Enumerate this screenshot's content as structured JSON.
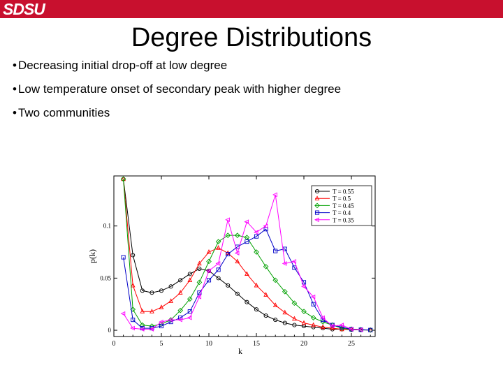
{
  "header": {
    "logo_text": "SDSU",
    "brand_color": "#c8102e"
  },
  "slide": {
    "title": "Degree Distributions",
    "bullets": [
      "Decreasing initial drop-off at low degree",
      "Low temperature onset of secondary peak with higher degree",
      "Two communities"
    ]
  },
  "chart_data": {
    "type": "line",
    "xlabel": "k",
    "ylabel": "p(k)",
    "xlim": [
      0,
      27.5
    ],
    "ylim": [
      -0.006,
      0.148
    ],
    "xticks": [
      0,
      5,
      10,
      15,
      20,
      25
    ],
    "yticks": [
      0,
      0.05,
      0.1
    ],
    "ytick_labels": [
      "0",
      "0.05",
      "0.1"
    ],
    "legend_position": "top-right",
    "series": [
      {
        "name": "T = 0.55",
        "color": "#000000",
        "marker": "circle",
        "x": [
          1,
          2,
          3,
          4,
          5,
          6,
          7,
          8,
          9,
          10,
          11,
          12,
          13,
          14,
          15,
          16,
          17,
          18,
          19,
          20,
          21,
          22,
          23,
          24,
          25,
          26,
          27
        ],
        "y": [
          0.145,
          0.072,
          0.038,
          0.036,
          0.038,
          0.042,
          0.048,
          0.054,
          0.059,
          0.057,
          0.05,
          0.043,
          0.035,
          0.027,
          0.02,
          0.014,
          0.01,
          0.007,
          0.005,
          0.004,
          0.003,
          0.002,
          0.001,
          0.001,
          0.0005,
          0.0003,
          0.0002
        ]
      },
      {
        "name": "T = 0.5",
        "color": "#ff0000",
        "marker": "triangle",
        "x": [
          1,
          2,
          3,
          4,
          5,
          6,
          7,
          8,
          9,
          10,
          11,
          12,
          13,
          14,
          15,
          16,
          17,
          18,
          19,
          20,
          21,
          22,
          23,
          24,
          25,
          26,
          27
        ],
        "y": [
          0.145,
          0.043,
          0.018,
          0.018,
          0.022,
          0.028,
          0.036,
          0.048,
          0.064,
          0.075,
          0.079,
          0.074,
          0.066,
          0.054,
          0.043,
          0.034,
          0.024,
          0.017,
          0.011,
          0.007,
          0.005,
          0.003,
          0.002,
          0.001,
          0.001,
          0.0005,
          0.0002
        ]
      },
      {
        "name": "T = 0.45",
        "color": "#00a000",
        "marker": "diamond",
        "x": [
          1,
          2,
          3,
          4,
          5,
          6,
          7,
          8,
          9,
          10,
          11,
          12,
          13,
          14,
          15,
          16,
          17,
          18,
          19,
          20,
          21,
          22,
          23,
          24,
          25,
          26,
          27
        ],
        "y": [
          0.145,
          0.02,
          0.005,
          0.004,
          0.006,
          0.01,
          0.019,
          0.03,
          0.046,
          0.066,
          0.085,
          0.091,
          0.091,
          0.089,
          0.075,
          0.061,
          0.048,
          0.037,
          0.026,
          0.018,
          0.012,
          0.008,
          0.005,
          0.002,
          0.001,
          0.0005,
          0.0002
        ]
      },
      {
        "name": "T = 0.4",
        "color": "#0000c8",
        "marker": "square",
        "x": [
          1,
          2,
          3,
          4,
          5,
          6,
          7,
          8,
          9,
          10,
          11,
          12,
          13,
          14,
          15,
          16,
          17,
          18,
          19,
          20,
          21,
          22,
          23,
          24,
          25,
          26,
          27
        ],
        "y": [
          0.07,
          0.01,
          0.002,
          0.002,
          0.004,
          0.008,
          0.012,
          0.018,
          0.036,
          0.048,
          0.058,
          0.073,
          0.08,
          0.085,
          0.09,
          0.097,
          0.076,
          0.078,
          0.06,
          0.046,
          0.025,
          0.01,
          0.005,
          0.003,
          0.001,
          0.0005,
          0.0002
        ]
      },
      {
        "name": "T = 0.35",
        "color": "#ff00ff",
        "marker": "triangle-left",
        "x": [
          1,
          2,
          3,
          4,
          5,
          6,
          7,
          8,
          9,
          10,
          11,
          12,
          13,
          14,
          15,
          16,
          17,
          18,
          19,
          20,
          21,
          22,
          23,
          24,
          25,
          26
        ],
        "y": [
          0.016,
          0.002,
          0.001,
          0.001,
          0.008,
          0.01,
          0.01,
          0.012,
          0.032,
          0.057,
          0.064,
          0.106,
          0.074,
          0.104,
          0.094,
          0.1,
          0.13,
          0.064,
          0.066,
          0.042,
          0.032,
          0.012,
          0.004,
          0.005,
          0.001,
          0.0005
        ]
      }
    ]
  }
}
